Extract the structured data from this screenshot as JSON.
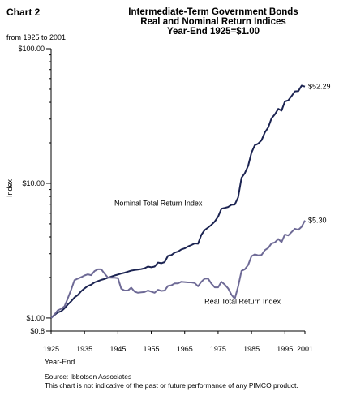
{
  "header": {
    "chart_label": "Chart 2",
    "title_lines": [
      "Intermediate-Term Government Bonds",
      "Real and Nominal Return Indices",
      "Year-End 1925=$1.00"
    ],
    "subtitle": "from 1925 to 2001"
  },
  "footer": {
    "source": "Source: Ibbotson Associates",
    "disclaimer": "This chart is not indicative of the past or future performance of any PIMCO product."
  },
  "chart_data": {
    "type": "line",
    "title": "Intermediate-Term Government Bonds Real and Nominal Return Indices Year-End 1925=$1.00",
    "xlabel": "Year-End",
    "ylabel": "Index",
    "yscale": "log",
    "xlim": [
      1925,
      2001
    ],
    "ylim": [
      0.8,
      100
    ],
    "x_ticks": [
      {
        "value": 1925,
        "label": "1925"
      },
      {
        "value": 1935,
        "label": "1935"
      },
      {
        "value": 1945,
        "label": "1945"
      },
      {
        "value": 1955,
        "label": "1955"
      },
      {
        "value": 1965,
        "label": "1965"
      },
      {
        "value": 1975,
        "label": "1975"
      },
      {
        "value": 1985,
        "label": "1985"
      },
      {
        "value": 1995,
        "label": "1995"
      },
      {
        "value": 2001,
        "label": "2001"
      }
    ],
    "y_labeled_ticks": [
      {
        "value": 100,
        "label": "$100.00"
      },
      {
        "value": 10,
        "label": "$10.00"
      },
      {
        "value": 1,
        "label": "$1.00"
      },
      {
        "value": 0.8,
        "label": "$0.8"
      }
    ],
    "y_minor_ticks": [
      2,
      3,
      4,
      5,
      6,
      7,
      8,
      9,
      20,
      30,
      40,
      50,
      60,
      70,
      80,
      90
    ],
    "grid": false,
    "colors": {
      "nominal": "#1c2452",
      "real": "#6e6a96",
      "axis": "#000000"
    },
    "series": [
      {
        "name": "Nominal Total Return Index",
        "end_label": "$52.29",
        "x": [
          1925,
          1926,
          1927,
          1928,
          1929,
          1930,
          1931,
          1932,
          1933,
          1934,
          1935,
          1936,
          1937,
          1938,
          1939,
          1940,
          1941,
          1942,
          1943,
          1944,
          1945,
          1946,
          1947,
          1948,
          1949,
          1950,
          1951,
          1952,
          1953,
          1954,
          1955,
          1956,
          1957,
          1958,
          1959,
          1960,
          1961,
          1962,
          1963,
          1964,
          1965,
          1966,
          1967,
          1968,
          1969,
          1970,
          1971,
          1972,
          1973,
          1974,
          1975,
          1976,
          1977,
          1978,
          1979,
          1980,
          1981,
          1982,
          1983,
          1984,
          1985,
          1986,
          1987,
          1988,
          1989,
          1990,
          1991,
          1992,
          1993,
          1994,
          1995,
          1996,
          1997,
          1998,
          1999,
          2000,
          2001
        ],
        "values": [
          1.0,
          1.05,
          1.1,
          1.12,
          1.18,
          1.26,
          1.33,
          1.42,
          1.48,
          1.58,
          1.66,
          1.73,
          1.77,
          1.84,
          1.88,
          1.92,
          1.95,
          1.99,
          2.03,
          2.07,
          2.1,
          2.14,
          2.17,
          2.21,
          2.25,
          2.27,
          2.29,
          2.31,
          2.34,
          2.41,
          2.38,
          2.41,
          2.58,
          2.55,
          2.6,
          2.89,
          2.93,
          3.06,
          3.11,
          3.23,
          3.29,
          3.4,
          3.48,
          3.58,
          3.56,
          4.15,
          4.5,
          4.7,
          4.92,
          5.21,
          5.65,
          6.48,
          6.57,
          6.67,
          6.93,
          6.96,
          7.86,
          11.0,
          11.9,
          13.5,
          16.9,
          19.2,
          19.7,
          20.9,
          23.9,
          26.0,
          30.4,
          32.5,
          35.7,
          34.7,
          40.6,
          41.3,
          44.5,
          48.2,
          48.4,
          53.2,
          52.29
        ]
      },
      {
        "name": "Real Total Return Index",
        "end_label": "$5.30",
        "x": [
          1925,
          1926,
          1927,
          1928,
          1929,
          1930,
          1931,
          1932,
          1933,
          1934,
          1935,
          1936,
          1937,
          1938,
          1939,
          1940,
          1941,
          1942,
          1943,
          1944,
          1945,
          1946,
          1947,
          1948,
          1949,
          1950,
          1951,
          1952,
          1953,
          1954,
          1955,
          1956,
          1957,
          1958,
          1959,
          1960,
          1961,
          1962,
          1963,
          1964,
          1965,
          1966,
          1967,
          1968,
          1969,
          1970,
          1971,
          1972,
          1973,
          1974,
          1975,
          1976,
          1977,
          1978,
          1979,
          1980,
          1981,
          1982,
          1983,
          1984,
          1985,
          1986,
          1987,
          1988,
          1989,
          1990,
          1991,
          1992,
          1993,
          1994,
          1995,
          1996,
          1997,
          1998,
          1999,
          2000,
          2001
        ],
        "values": [
          1.0,
          1.06,
          1.14,
          1.17,
          1.22,
          1.4,
          1.62,
          1.91,
          1.96,
          2.01,
          2.07,
          2.11,
          2.08,
          2.23,
          2.3,
          2.3,
          2.14,
          2.0,
          1.99,
          1.99,
          1.98,
          1.65,
          1.6,
          1.6,
          1.68,
          1.57,
          1.54,
          1.55,
          1.56,
          1.6,
          1.57,
          1.54,
          1.62,
          1.59,
          1.6,
          1.73,
          1.75,
          1.81,
          1.81,
          1.86,
          1.85,
          1.84,
          1.84,
          1.82,
          1.72,
          1.86,
          1.96,
          1.96,
          1.8,
          1.69,
          1.69,
          1.86,
          1.77,
          1.66,
          1.49,
          1.39,
          1.71,
          2.24,
          2.3,
          2.48,
          2.88,
          2.97,
          2.92,
          2.94,
          3.19,
          3.31,
          3.58,
          3.64,
          3.86,
          3.66,
          4.17,
          4.1,
          4.34,
          4.6,
          4.52,
          4.76,
          5.3
        ]
      }
    ],
    "annotations": [
      {
        "text": "Nominal Total Return Index",
        "x": 1924.5,
        "y": 7.1
      },
      {
        "text": "Real Total Return Index",
        "x": 1951.5,
        "y": 1.33
      }
    ]
  }
}
